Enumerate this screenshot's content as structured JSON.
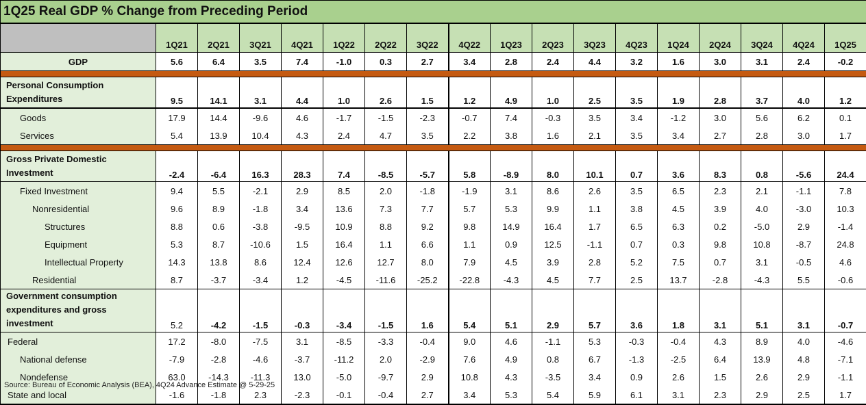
{
  "title": "1Q25 Real GDP % Change from Preceding Period",
  "columns": [
    "1Q21",
    "2Q21",
    "3Q21",
    "4Q21",
    "1Q22",
    "2Q22",
    "3Q22",
    "4Q22",
    "1Q23",
    "2Q23",
    "3Q23",
    "4Q23",
    "1Q24",
    "2Q24",
    "3Q24",
    "4Q24",
    "1Q25"
  ],
  "colors": {
    "title_bg": "#a9d08e",
    "header_bg": "#c6e0b4",
    "label_bg": "#e2efda",
    "separator": "#c55a11",
    "corner": "#bfbfbf"
  },
  "rows": [
    {
      "label": "GDP",
      "bold": true,
      "indent": 0,
      "center": true,
      "values": [
        "5.6",
        "6.4",
        "3.5",
        "7.4",
        "-1.0",
        "0.3",
        "2.7",
        "3.4",
        "2.8",
        "2.4",
        "4.4",
        "3.2",
        "1.6",
        "3.0",
        "3.1",
        "2.4",
        "-0.2"
      ],
      "end": "band"
    },
    {
      "label": "Personal Consumption Expenditures",
      "bold": true,
      "indent": 0,
      "two": true,
      "values": [
        "9.5",
        "14.1",
        "3.1",
        "4.4",
        "1.0",
        "2.6",
        "1.5",
        "1.2",
        "4.9",
        "1.0",
        "2.5",
        "3.5",
        "1.9",
        "2.8",
        "3.7",
        "4.0",
        "1.2"
      ],
      "end": "thick"
    },
    {
      "label": "Goods",
      "indent": 2,
      "values": [
        "17.9",
        "14.4",
        "-9.6",
        "4.6",
        "-1.7",
        "-1.5",
        "-2.3",
        "-0.7",
        "7.4",
        "-0.3",
        "3.5",
        "3.4",
        "-1.2",
        "3.0",
        "5.6",
        "6.2",
        "0.1"
      ]
    },
    {
      "label": "Services",
      "indent": 2,
      "values": [
        "5.4",
        "13.9",
        "10.4",
        "4.3",
        "2.4",
        "4.7",
        "3.5",
        "2.2",
        "3.8",
        "1.6",
        "2.1",
        "3.5",
        "3.4",
        "2.7",
        "2.8",
        "3.0",
        "1.7"
      ],
      "end": "band"
    },
    {
      "label": "Gross Private Domestic Investment",
      "bold": true,
      "indent": 0,
      "two": true,
      "values": [
        "-2.4",
        "-6.4",
        "16.3",
        "28.3",
        "7.4",
        "-8.5",
        "-5.7",
        "5.8",
        "-8.9",
        "8.0",
        "10.1",
        "0.7",
        "3.6",
        "8.3",
        "0.8",
        "-5.6",
        "24.4"
      ],
      "end": "line"
    },
    {
      "label": "Fixed Investment",
      "indent": 2,
      "values": [
        "9.4",
        "5.5",
        "-2.1",
        "2.9",
        "8.5",
        "2.0",
        "-1.8",
        "-1.9",
        "3.1",
        "8.6",
        "2.6",
        "3.5",
        "6.5",
        "2.3",
        "2.1",
        "-1.1",
        "7.8"
      ]
    },
    {
      "label": "Nonresidential",
      "indent": 3,
      "values": [
        "9.6",
        "8.9",
        "-1.8",
        "3.4",
        "13.6",
        "7.3",
        "7.7",
        "5.7",
        "5.3",
        "9.9",
        "1.1",
        "3.8",
        "4.5",
        "3.9",
        "4.0",
        "-3.0",
        "10.3"
      ]
    },
    {
      "label": "Structures",
      "indent": 4,
      "values": [
        "8.8",
        "0.6",
        "-3.8",
        "-9.5",
        "10.9",
        "8.8",
        "9.2",
        "9.8",
        "14.9",
        "16.4",
        "1.7",
        "6.5",
        "6.3",
        "0.2",
        "-5.0",
        "2.9",
        "-1.4"
      ]
    },
    {
      "label": "Equipment",
      "indent": 4,
      "values": [
        "5.3",
        "8.7",
        "-10.6",
        "1.5",
        "16.4",
        "1.1",
        "6.6",
        "1.1",
        "0.9",
        "12.5",
        "-1.1",
        "0.7",
        "0.3",
        "9.8",
        "10.8",
        "-8.7",
        "24.8"
      ]
    },
    {
      "label": "Intellectual Property",
      "indent": 4,
      "values": [
        "14.3",
        "13.8",
        "8.6",
        "12.4",
        "12.6",
        "12.7",
        "8.0",
        "7.9",
        "4.5",
        "3.9",
        "2.8",
        "5.2",
        "7.5",
        "0.7",
        "3.1",
        "-0.5",
        "4.6"
      ]
    },
    {
      "label": "Residential",
      "indent": 3,
      "values": [
        "8.7",
        "-3.7",
        "-3.4",
        "1.2",
        "-4.5",
        "-11.6",
        "-25.2",
        "-22.8",
        "-4.3",
        "4.5",
        "7.7",
        "2.5",
        "13.7",
        "-2.8",
        "-4.3",
        "5.5",
        "-0.6"
      ],
      "end": "line"
    },
    {
      "label": "Government consumption expenditures and gross investment",
      "bold": true,
      "indent": 0,
      "two": true,
      "values": [
        "5.2",
        "-4.2",
        "-1.5",
        "-0.3",
        "-3.4",
        "-1.5",
        "1.6",
        "5.4",
        "5.1",
        "2.9",
        "5.7",
        "3.6",
        "1.8",
        "3.1",
        "5.1",
        "3.1",
        "-0.7"
      ],
      "end": "line"
    },
    {
      "label": "Federal",
      "indent": 1,
      "values": [
        "17.2",
        "-8.0",
        "-7.5",
        "3.1",
        "-8.5",
        "-3.3",
        "-0.4",
        "9.0",
        "4.6",
        "-1.1",
        "5.3",
        "-0.3",
        "-0.4",
        "4.3",
        "8.9",
        "4.0",
        "-4.6"
      ]
    },
    {
      "label": "National defense",
      "indent": 2,
      "values": [
        "-7.9",
        "-2.8",
        "-4.6",
        "-3.7",
        "-11.2",
        "2.0",
        "-2.9",
        "7.6",
        "4.9",
        "0.8",
        "6.7",
        "-1.3",
        "-2.5",
        "6.4",
        "13.9",
        "4.8",
        "-7.1"
      ]
    },
    {
      "label": "Nondefense",
      "indent": 2,
      "values": [
        "63.0",
        "-14.3",
        "-11.3",
        "13.0",
        "-5.0",
        "-9.7",
        "2.9",
        "10.8",
        "4.3",
        "-3.5",
        "3.4",
        "0.9",
        "2.6",
        "1.5",
        "2.6",
        "2.9",
        "-1.1"
      ]
    },
    {
      "label": "State and local",
      "indent": 1,
      "values": [
        "-1.6",
        "-1.8",
        "2.3",
        "-2.3",
        "-0.1",
        "-0.4",
        "2.7",
        "3.4",
        "5.3",
        "5.4",
        "5.9",
        "6.1",
        "3.1",
        "2.3",
        "2.9",
        "2.5",
        "1.7"
      ],
      "end": "thick"
    }
  ],
  "source": "Source: Bureau of Economic Analysis (BEA), 4Q24 Advance Estimate @ 5-29-25"
}
